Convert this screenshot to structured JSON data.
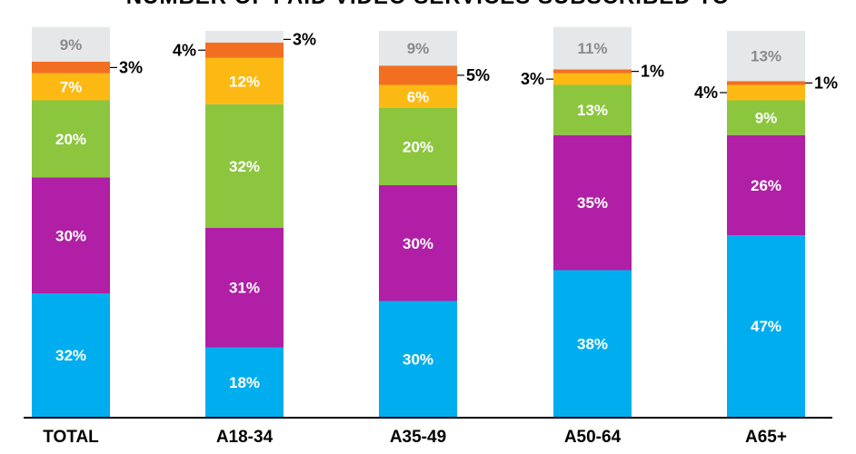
{
  "chart_data": {
    "type": "bar",
    "stacked": true,
    "title": "NUMBER OF PAID VIDEO SERVICES SUBSCRIBED TO",
    "categories": [
      "TOTAL",
      "A18-34",
      "A35-49",
      "A50-64",
      "A65+"
    ],
    "series": [
      {
        "values": [
          32,
          18,
          30,
          38,
          47
        ],
        "color": "#00aeef"
      },
      {
        "values": [
          30,
          31,
          30,
          35,
          26
        ],
        "color": "#b01fa5"
      },
      {
        "values": [
          20,
          32,
          20,
          13,
          9
        ],
        "color": "#8cc63f"
      },
      {
        "values": [
          7,
          12,
          6,
          3,
          4
        ],
        "color": "#fdb913"
      },
      {
        "values": [
          3,
          4,
          5,
          1,
          1
        ],
        "color": "#f26f21"
      },
      {
        "values": [
          9,
          3,
          9,
          11,
          13
        ],
        "color": "#e6e7e8"
      }
    ],
    "data_labels": [
      [
        "32%",
        "30%",
        "20%",
        "7%",
        "3%",
        "9%"
      ],
      [
        "18%",
        "31%",
        "32%",
        "12%",
        "4%",
        ""
      ],
      [
        "30%",
        "30%",
        "20%",
        "6%",
        "5%",
        "9%"
      ],
      [
        "38%",
        "35%",
        "13%",
        "3%",
        "1%",
        "11%"
      ],
      [
        "47%",
        "26%",
        "9%",
        "4%",
        "1%",
        "13%"
      ]
    ],
    "extra_labels": [
      [],
      [
        "3%"
      ],
      [],
      [],
      []
    ],
    "ylim": [
      0,
      100
    ],
    "grid": false,
    "legend": "none"
  }
}
